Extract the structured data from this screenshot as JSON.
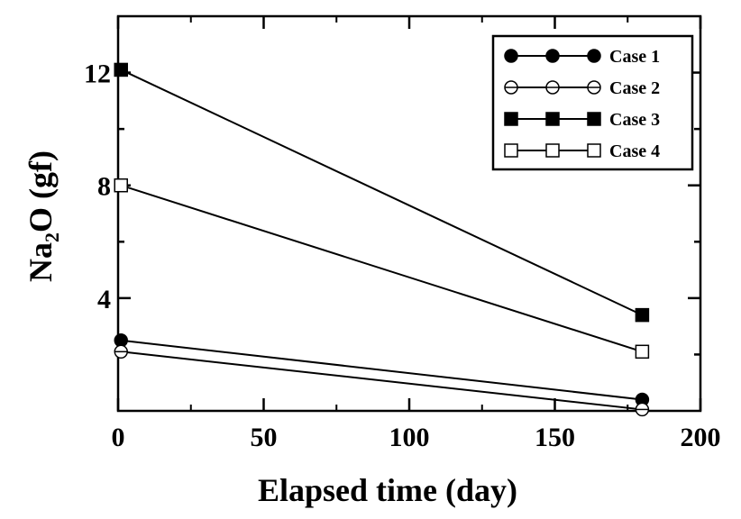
{
  "chart_data": {
    "type": "line",
    "title": "",
    "xlabel": "Elapsed time (day)",
    "ylabel": {
      "main": "Na",
      "sub": "2",
      "rest": "O (gf)"
    },
    "xlim": [
      0,
      200
    ],
    "ylim": [
      0,
      14
    ],
    "xticks": [
      0,
      50,
      100,
      150,
      200
    ],
    "yticks": [
      4,
      8,
      12
    ],
    "grid": false,
    "legend_position": "top-right",
    "series": [
      {
        "name": "Case 1",
        "marker": "filled-circle",
        "x": [
          1,
          180
        ],
        "y": [
          2.5,
          0.4
        ]
      },
      {
        "name": "Case 2",
        "marker": "open-circle",
        "x": [
          1,
          180
        ],
        "y": [
          2.1,
          0.05
        ]
      },
      {
        "name": "Case 3",
        "marker": "filled-square",
        "x": [
          1,
          180
        ],
        "y": [
          12.1,
          3.4
        ]
      },
      {
        "name": "Case 4",
        "marker": "open-square",
        "x": [
          1,
          180
        ],
        "y": [
          8.0,
          2.1
        ]
      }
    ]
  }
}
